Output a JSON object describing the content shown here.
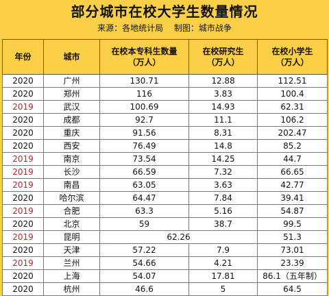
{
  "title": "部分城市在校大学生数量情况",
  "source": "来源：各地统计局",
  "maker": "制图：城市战争",
  "headers": {
    "year": "年份",
    "city": "城市",
    "undergrad": "在校本专科生数量\n（万人）",
    "grad": "在校研究生\n（万人）",
    "primary": "在校小学生\n（万人）"
  },
  "colors": {
    "background": "#fcd046",
    "year_2019": "#b8242c",
    "year_2020": "#111111"
  },
  "rows": [
    {
      "year": "2020",
      "city": "广州",
      "undergrad": "130.71",
      "grad": "12.88",
      "primary": "112.51"
    },
    {
      "year": "2020",
      "city": "郑州",
      "undergrad": "116",
      "grad": "3.83",
      "primary": "100.4"
    },
    {
      "year": "2019",
      "city": "武汉",
      "undergrad": "100.69",
      "grad": "14.93",
      "primary": "62.31"
    },
    {
      "year": "2020",
      "city": "成都",
      "undergrad": "92.7",
      "grad": "11.1",
      "primary": "106.2"
    },
    {
      "year": "2020",
      "city": "重庆",
      "undergrad": "91.56",
      "grad": "8.31",
      "primary": "202.47"
    },
    {
      "year": "2020",
      "city": "西安",
      "undergrad": "76.49",
      "grad": "14.8",
      "primary": "85.2"
    },
    {
      "year": "2019",
      "city": "南京",
      "undergrad": "73.54",
      "grad": "14.25",
      "primary": "44.7"
    },
    {
      "year": "2019",
      "city": "长沙",
      "undergrad": "66.59",
      "grad": "7.32",
      "primary": "66.65"
    },
    {
      "year": "2019",
      "city": "南昌",
      "undergrad": "63.05",
      "grad": "3.63",
      "primary": "42.77"
    },
    {
      "year": "2020",
      "city": "哈尔滨",
      "undergrad": "64.47",
      "grad": "7.84",
      "primary": "39.41"
    },
    {
      "year": "2019",
      "city": "合肥",
      "undergrad": "63.3",
      "grad": "5.16",
      "primary": "54.87"
    },
    {
      "year": "2020",
      "city": "北京",
      "undergrad": "59",
      "grad": "38.7",
      "primary": "99.5"
    },
    {
      "year": "2019",
      "city": "昆明",
      "merged": "62.26",
      "primary": "51.3"
    },
    {
      "year": "2020",
      "city": "天津",
      "undergrad": "57.22",
      "grad": "7.9",
      "primary": "73.01"
    },
    {
      "year": "2019",
      "city": "兰州",
      "undergrad": "54.66",
      "grad": "4.21",
      "primary": "23.39"
    },
    {
      "year": "2020",
      "city": "上海",
      "undergrad": "54.07",
      "grad": "17.81",
      "primary": "86.1（五年制）"
    },
    {
      "year": "2020",
      "city": "杭州",
      "undergrad": "46.6",
      "grad": "5",
      "primary": "64.5"
    }
  ]
}
